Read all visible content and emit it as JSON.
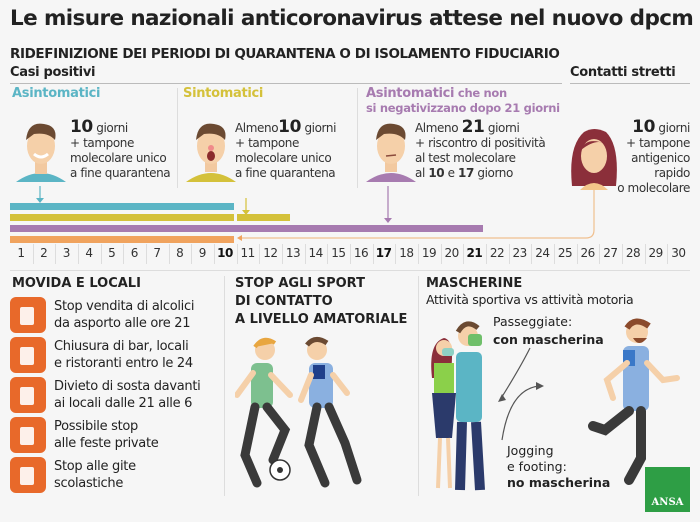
{
  "title": "Le misure nazionali anticoronavirus attese nel nuovo dpcm",
  "quarantine": {
    "subtitle": "RIDEFINIZIONE DEI PERIODI DI QUARANTENA O DI ISOLAMENTO FIDUCIARIO",
    "positive_label": "Casi positivi",
    "contacts_label": "Contatti stretti",
    "groups": [
      {
        "title": "Asintomatici",
        "title_extra": "",
        "title_line2": "",
        "color": "#5bb5c5",
        "lines": [
          [
            "10",
            " giorni"
          ],
          [
            "",
            "+ tampone"
          ],
          [
            "",
            "molecolare unico"
          ],
          [
            "",
            "a fine quarantena"
          ]
        ]
      },
      {
        "title": "Sintomatici",
        "title_extra": "",
        "title_line2": "",
        "color": "#d4c13a",
        "lines": [
          [
            "Almeno",
            "10",
            " giorni"
          ],
          [
            "",
            "+ tampone"
          ],
          [
            "",
            "molecolare unico"
          ],
          [
            "",
            "a fine quarantena"
          ]
        ]
      },
      {
        "title": "Asintomatici",
        "title_extra": " che non",
        "title_line2": "si negativizzano dopo 21 giorni",
        "color": "#a77bb0",
        "lines": [
          [
            "Almeno ",
            "21",
            " giorni"
          ],
          [
            "",
            "+ riscontro di positività"
          ],
          [
            "",
            "al test molecolare"
          ],
          [
            "al ",
            "10",
            " e ",
            "17",
            " giorno"
          ]
        ]
      },
      {
        "title": "",
        "color": "#f0a35e",
        "lines": [
          [
            "10",
            " giorni"
          ],
          [
            "",
            "+ tampone"
          ],
          [
            "",
            "antigenico"
          ],
          [
            "",
            "rapido"
          ],
          [
            "",
            "o molecolare"
          ]
        ]
      }
    ],
    "bars": [
      {
        "color": "#5bb5c5",
        "segments": [
          [
            1,
            10
          ]
        ]
      },
      {
        "color": "#d4c13a",
        "segments": [
          [
            1,
            10
          ],
          [
            11,
            11.8
          ],
          [
            12,
            12.5
          ]
        ]
      },
      {
        "color": "#a77bb0",
        "segments": [
          [
            1,
            21
          ]
        ]
      },
      {
        "color": "#f0a35e",
        "segments": [
          [
            1,
            10
          ]
        ]
      }
    ],
    "days": [
      1,
      2,
      3,
      4,
      5,
      6,
      7,
      8,
      9,
      10,
      11,
      12,
      13,
      14,
      15,
      16,
      17,
      18,
      19,
      20,
      21,
      22,
      23,
      24,
      25,
      26,
      27,
      28,
      29,
      30
    ],
    "bold_days": [
      10,
      17,
      21
    ]
  },
  "movida": {
    "title": "MOVIDA E LOCALI",
    "items": [
      {
        "icon": "beer-mug-icon",
        "line1": "Stop vendita di alcolici",
        "line2": "da asporto alle ore 21"
      },
      {
        "icon": "cutlery-icon",
        "line1": "Chiusura di bar, locali",
        "line2": "e ristoranti entro le 24"
      },
      {
        "icon": "crowd-icon",
        "line1": "Divieto di sosta davanti",
        "line2": "ai locali dalle 21 alle 6"
      },
      {
        "icon": "party-table-icon",
        "line1": "Possibile stop",
        "line2": "alle feste private"
      },
      {
        "icon": "school-trip-icon",
        "line1": "Stop alle gite",
        "line2": "scolastiche"
      }
    ],
    "accent": "#e8692a"
  },
  "sport": {
    "line1": "STOP AGLI SPORT",
    "line2": "DI CONTATTO",
    "line3": "A LIVELLO AMATORIALE"
  },
  "masks": {
    "title": "MASCHERINE",
    "subtitle": "Attività sportiva vs attività motoria",
    "walk_label": "Passeggiate:",
    "walk_value": "con mascherina",
    "jog_label1": "Jogging",
    "jog_label2": "e footing:",
    "jog_value": "no mascherina"
  },
  "logo": "ANSA"
}
